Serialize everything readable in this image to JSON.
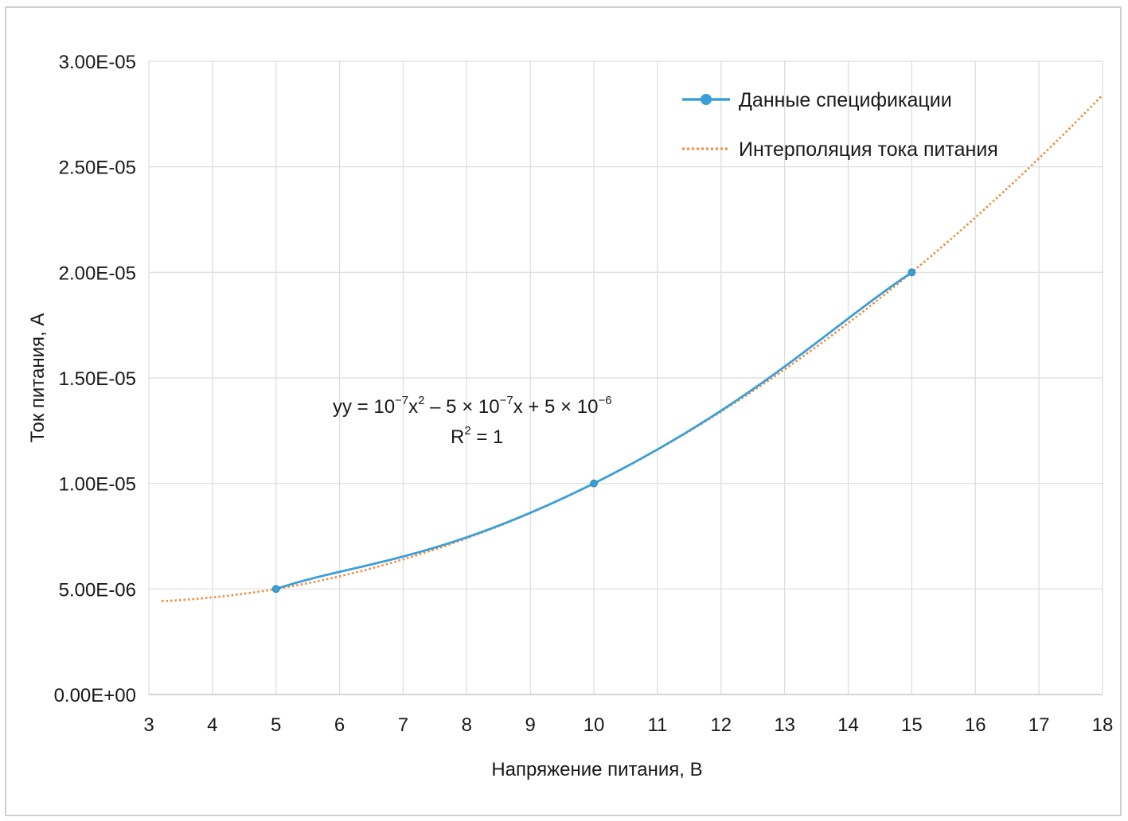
{
  "chart_data": {
    "type": "line",
    "xlabel": "Напряжение питания, В",
    "ylabel": "Ток питания, А",
    "xlim": [
      3,
      18
    ],
    "ylim": [
      0,
      3e-05
    ],
    "x_ticks": [
      "3",
      "4",
      "5",
      "6",
      "7",
      "8",
      "9",
      "10",
      "11",
      "12",
      "13",
      "14",
      "15",
      "16",
      "17",
      "18"
    ],
    "y_ticks": [
      "0.00E+00",
      "5.00E-06",
      "1.00E-05",
      "1.50E-05",
      "2.00E-05",
      "2.50E-05",
      "3.00E-05"
    ],
    "grid": true,
    "legend_position": "top-right",
    "series": [
      {
        "name": "Данные спецификации",
        "color": "#3a9fd8",
        "style": "solid-with-markers",
        "x": [
          5,
          10,
          15
        ],
        "y": [
          5e-06,
          1e-05,
          2e-05
        ]
      },
      {
        "name": "Интерполяция тока питания",
        "color": "#f08a3c",
        "style": "dotted",
        "fit": "poly2",
        "coefficients": {
          "a": 1e-07,
          "b": -5e-07,
          "c": 5e-06
        }
      }
    ],
    "annotation": {
      "eq_prefix": "yy = 10",
      "eq_exp1": "−7",
      "eq_x1": "x",
      "eq_exp2": "2",
      "eq_mid": " – 5 × 10",
      "eq_exp3": "−7",
      "eq_mid2": "x + 5 × 10",
      "eq_exp4": "−6",
      "r2_prefix": "R",
      "r2_exp": "2",
      "r2_suffix": " = 1"
    }
  }
}
